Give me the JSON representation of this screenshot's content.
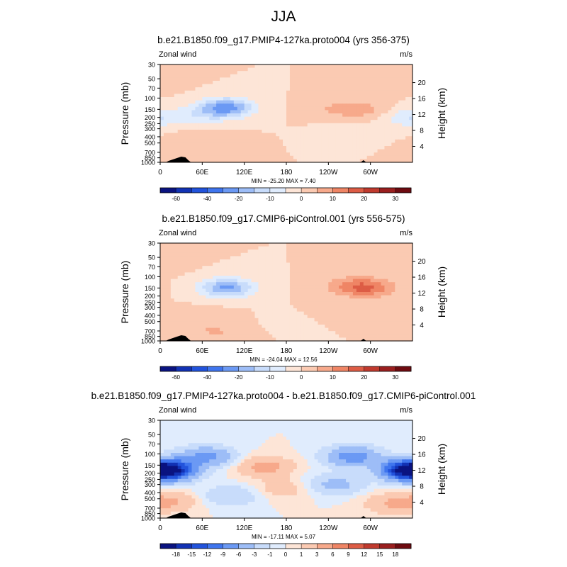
{
  "page_title": "JJA",
  "colors": {
    "scale_a": [
      "#0a1380",
      "#1232b4",
      "#2253dc",
      "#3f75ee",
      "#6b99f4",
      "#9dbdf7",
      "#c8dcfb",
      "#e0ecfd",
      "#fde5d7",
      "#fbcab2",
      "#f7a98b",
      "#ef8565",
      "#dd5c45",
      "#c03a2e",
      "#9a1f1f",
      "#6e0b10"
    ],
    "scale_b": [
      "#0a1380",
      "#1232b4",
      "#2253dc",
      "#3f75ee",
      "#6b99f4",
      "#9dbdf7",
      "#c8dcfb",
      "#e0ecfd",
      "#fde5d7",
      "#fbcab2",
      "#f7a98b",
      "#ef8565",
      "#dd5c45",
      "#c03a2e",
      "#9a1f1f",
      "#6e0b10"
    ],
    "terrain": "#000000"
  },
  "chart_data": [
    {
      "type": "heatmap",
      "title": "b.e21.B1850.f09_g17.PMIP4-127ka.proto004 (yrs 356-375)",
      "left_label": "Zonal wind",
      "right_label": "m/s",
      "ylabel": "Pressure (mb)",
      "ylabel_right": "Height (km)",
      "x_ticks": [
        "0",
        "60E",
        "120E",
        "180",
        "120W",
        "60W"
      ],
      "x_tick_lon": [
        0,
        60,
        120,
        180,
        240,
        300
      ],
      "xlim": [
        0,
        360
      ],
      "p_ticks": [
        "30",
        "50",
        "70",
        "100",
        "150",
        "200",
        "250",
        "300",
        "400",
        "500",
        "700",
        "850",
        "1000"
      ],
      "p_tick_values": [
        30,
        50,
        70,
        100,
        150,
        200,
        250,
        300,
        400,
        500,
        700,
        850,
        1000
      ],
      "h_ticks": [
        "20",
        "16",
        "12",
        "8",
        "4"
      ],
      "stats": "MIN = -25.20  MAX =   7.40",
      "colorbar_labels": [
        "-60",
        "-40",
        "-20",
        "-10",
        "0",
        "10",
        "20",
        "30"
      ],
      "features": [
        {
          "lon": 0,
          "p": 60,
          "value": 1
        },
        {
          "lon": 95,
          "p": 140,
          "value": -22
        },
        {
          "lon": 60,
          "p": 180,
          "value": -7
        },
        {
          "lon": 250,
          "p": 150,
          "value": 5
        },
        {
          "lon": 295,
          "p": 155,
          "value": 6
        },
        {
          "lon": 60,
          "p": 450,
          "value": 4
        },
        {
          "lon": 50,
          "p": 800,
          "value": 3
        },
        {
          "lon": 270,
          "p": 300,
          "value": -2
        },
        {
          "lon": 355,
          "p": 200,
          "value": -10
        }
      ]
    },
    {
      "type": "heatmap",
      "title": "b.e21.B1850.f09_g17.CMIP6-piControl.001 (yrs 556-575)",
      "left_label": "Zonal wind",
      "right_label": "m/s",
      "ylabel": "Pressure (mb)",
      "ylabel_right": "Height (km)",
      "x_ticks": [
        "0",
        "60E",
        "120E",
        "180",
        "120W",
        "60W"
      ],
      "x_tick_lon": [
        0,
        60,
        120,
        180,
        240,
        300
      ],
      "xlim": [
        0,
        360
      ],
      "p_ticks": [
        "30",
        "50",
        "70",
        "100",
        "150",
        "200",
        "250",
        "300",
        "400",
        "500",
        "700",
        "850",
        "1000"
      ],
      "p_tick_values": [
        30,
        50,
        70,
        100,
        150,
        200,
        250,
        300,
        400,
        500,
        700,
        850,
        1000
      ],
      "h_ticks": [
        "20",
        "16",
        "12",
        "8",
        "4"
      ],
      "stats": "MIN = -24.04  MAX =  12.56",
      "colorbar_labels": [
        "-60",
        "-40",
        "-20",
        "-10",
        "0",
        "10",
        "20",
        "30"
      ],
      "features": [
        {
          "lon": 0,
          "p": 60,
          "value": 2
        },
        {
          "lon": 95,
          "p": 150,
          "value": -21
        },
        {
          "lon": 270,
          "p": 140,
          "value": 8
        },
        {
          "lon": 300,
          "p": 150,
          "value": 12
        },
        {
          "lon": 60,
          "p": 450,
          "value": 4
        },
        {
          "lon": 80,
          "p": 750,
          "value": 5
        },
        {
          "lon": 250,
          "p": 380,
          "value": 4
        },
        {
          "lon": 200,
          "p": 500,
          "value": -2
        }
      ]
    },
    {
      "type": "heatmap",
      "title": "b.e21.B1850.f09_g17.PMIP4-127ka.proto004 - b.e21.B1850.f09_g17.CMIP6-piControl.001",
      "left_label": "Zonal wind",
      "right_label": "m/s",
      "ylabel": "Pressure (mb)",
      "ylabel_right": "Height (km)",
      "x_ticks": [
        "0",
        "60E",
        "120E",
        "180",
        "120W",
        "60W"
      ],
      "x_tick_lon": [
        0,
        60,
        120,
        180,
        240,
        300
      ],
      "xlim": [
        0,
        360
      ],
      "p_ticks": [
        "30",
        "50",
        "70",
        "100",
        "150",
        "200",
        "250",
        "300",
        "400",
        "500",
        "700",
        "850",
        "1000"
      ],
      "p_tick_values": [
        30,
        50,
        70,
        100,
        150,
        200,
        250,
        300,
        400,
        500,
        700,
        850,
        1000
      ],
      "h_ticks": [
        "20",
        "16",
        "12",
        "8",
        "4"
      ],
      "stats": "MIN = -17.11  MAX =   5.07",
      "colorbar_labels": [
        "-18",
        "-15",
        "-12",
        "-9",
        "-6",
        "-3",
        "-1",
        "0",
        "1",
        "3",
        "6",
        "9",
        "12",
        "15",
        "18"
      ],
      "features": [
        {
          "lon": 10,
          "p": 180,
          "value": -14
        },
        {
          "lon": 355,
          "p": 180,
          "value": -14
        },
        {
          "lon": 65,
          "p": 110,
          "value": -7
        },
        {
          "lon": 275,
          "p": 110,
          "value": -8
        },
        {
          "lon": 150,
          "p": 160,
          "value": 4
        },
        {
          "lon": 175,
          "p": 350,
          "value": 2
        },
        {
          "lon": 15,
          "p": 550,
          "value": 3
        },
        {
          "lon": 330,
          "p": 600,
          "value": 3
        },
        {
          "lon": 100,
          "p": 450,
          "value": -3
        },
        {
          "lon": 250,
          "p": 300,
          "value": -4
        }
      ]
    }
  ]
}
